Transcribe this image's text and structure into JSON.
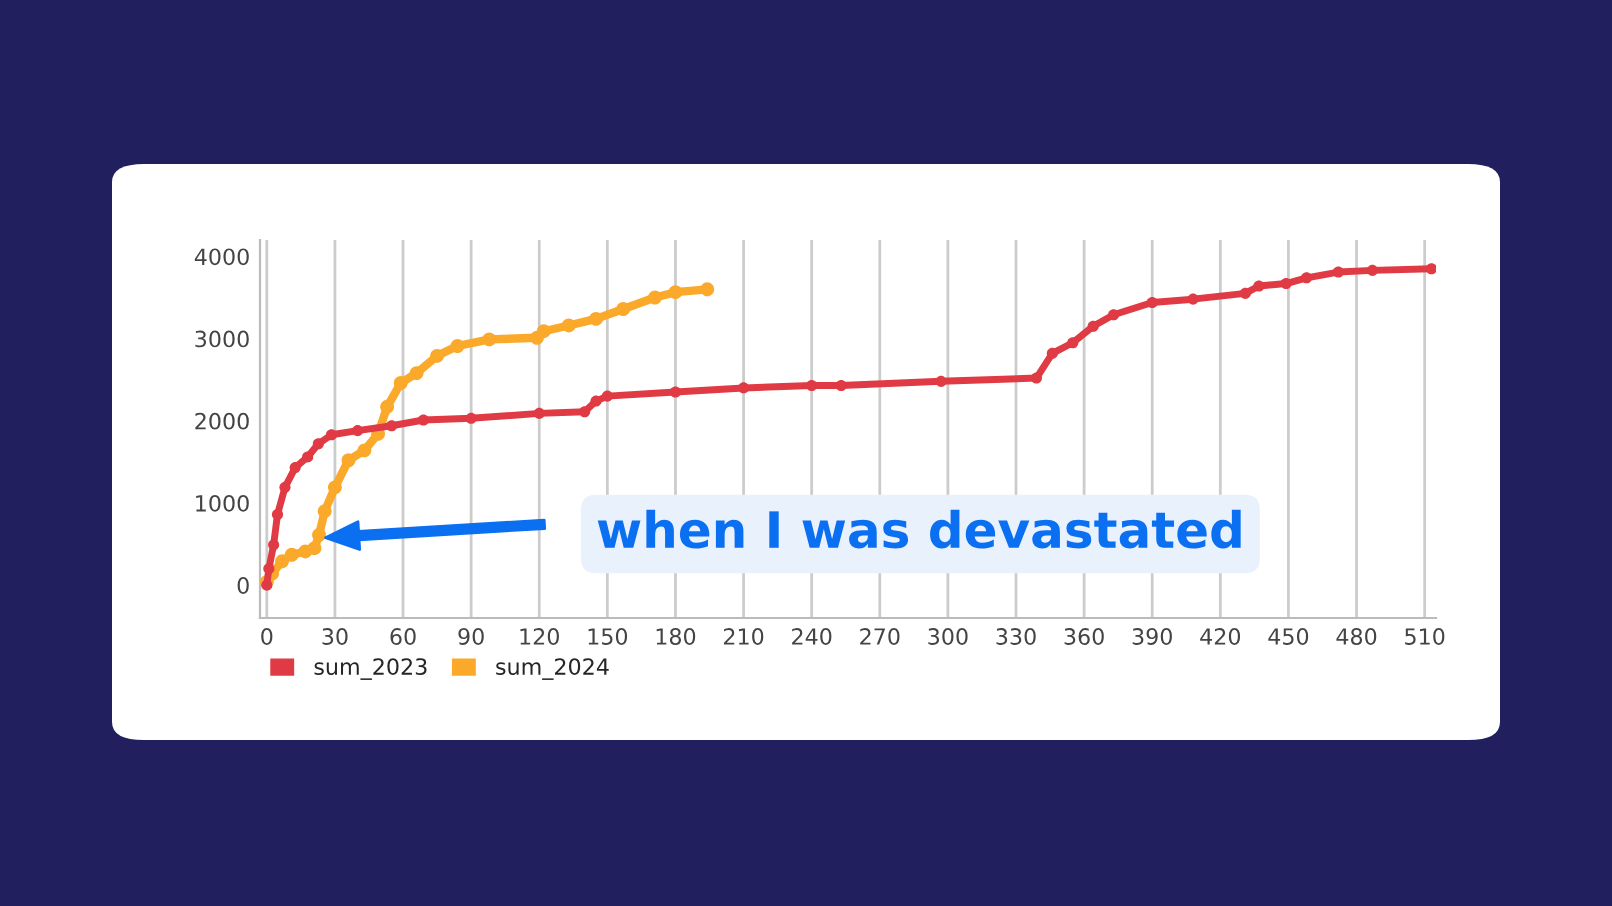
{
  "chart_data": {
    "type": "line",
    "marker": "circle",
    "grid": "x",
    "legend": "bottom left",
    "xlim": [
      -3,
      515
    ],
    "xticks": [
      0,
      30,
      60,
      90,
      120,
      150,
      180,
      210,
      240,
      270,
      300,
      330,
      360,
      390,
      420,
      450,
      480,
      510
    ],
    "ylim": [
      -400,
      4200
    ],
    "yticks": [
      0,
      1000,
      2000,
      3000,
      4000
    ],
    "annotations": [
      "when I was devastated"
    ],
    "series": [
      {
        "name": "sum_2023",
        "color": "#e03a45",
        "x": [
          0,
          0.9,
          3,
          4.7,
          8,
          12.5,
          18,
          22.7,
          28.5,
          40,
          55,
          69,
          90,
          120,
          140,
          145,
          150,
          180,
          210,
          240,
          253,
          297,
          339,
          346,
          355,
          364,
          373,
          390,
          408,
          431,
          437,
          449,
          458,
          472,
          487,
          513
        ],
        "values": [
          0,
          200,
          490,
          860,
          1190,
          1430,
          1560,
          1720,
          1830,
          1880,
          1940,
          2010,
          2030,
          2090,
          2110,
          2240,
          2300,
          2350,
          2400,
          2430,
          2430,
          2480,
          2520,
          2820,
          2950,
          3150,
          3290,
          3440,
          3480,
          3550,
          3640,
          3670,
          3740,
          3810,
          3830,
          3850
        ]
      },
      {
        "name": "sum_2024",
        "color": "#fba92a",
        "x": [
          0,
          2.3,
          6.7,
          11,
          17,
          21,
          23,
          25.5,
          30,
          36,
          43,
          49,
          53,
          59,
          66,
          75,
          84,
          98,
          119,
          122,
          133,
          145,
          157,
          171,
          180,
          194
        ],
        "values": [
          40,
          140,
          290,
          370,
          410,
          450,
          610,
          900,
          1190,
          1520,
          1640,
          1840,
          2170,
          2460,
          2580,
          2790,
          2910,
          2990,
          3010,
          3090,
          3160,
          3240,
          3360,
          3500,
          3565,
          3600
        ]
      }
    ]
  }
}
